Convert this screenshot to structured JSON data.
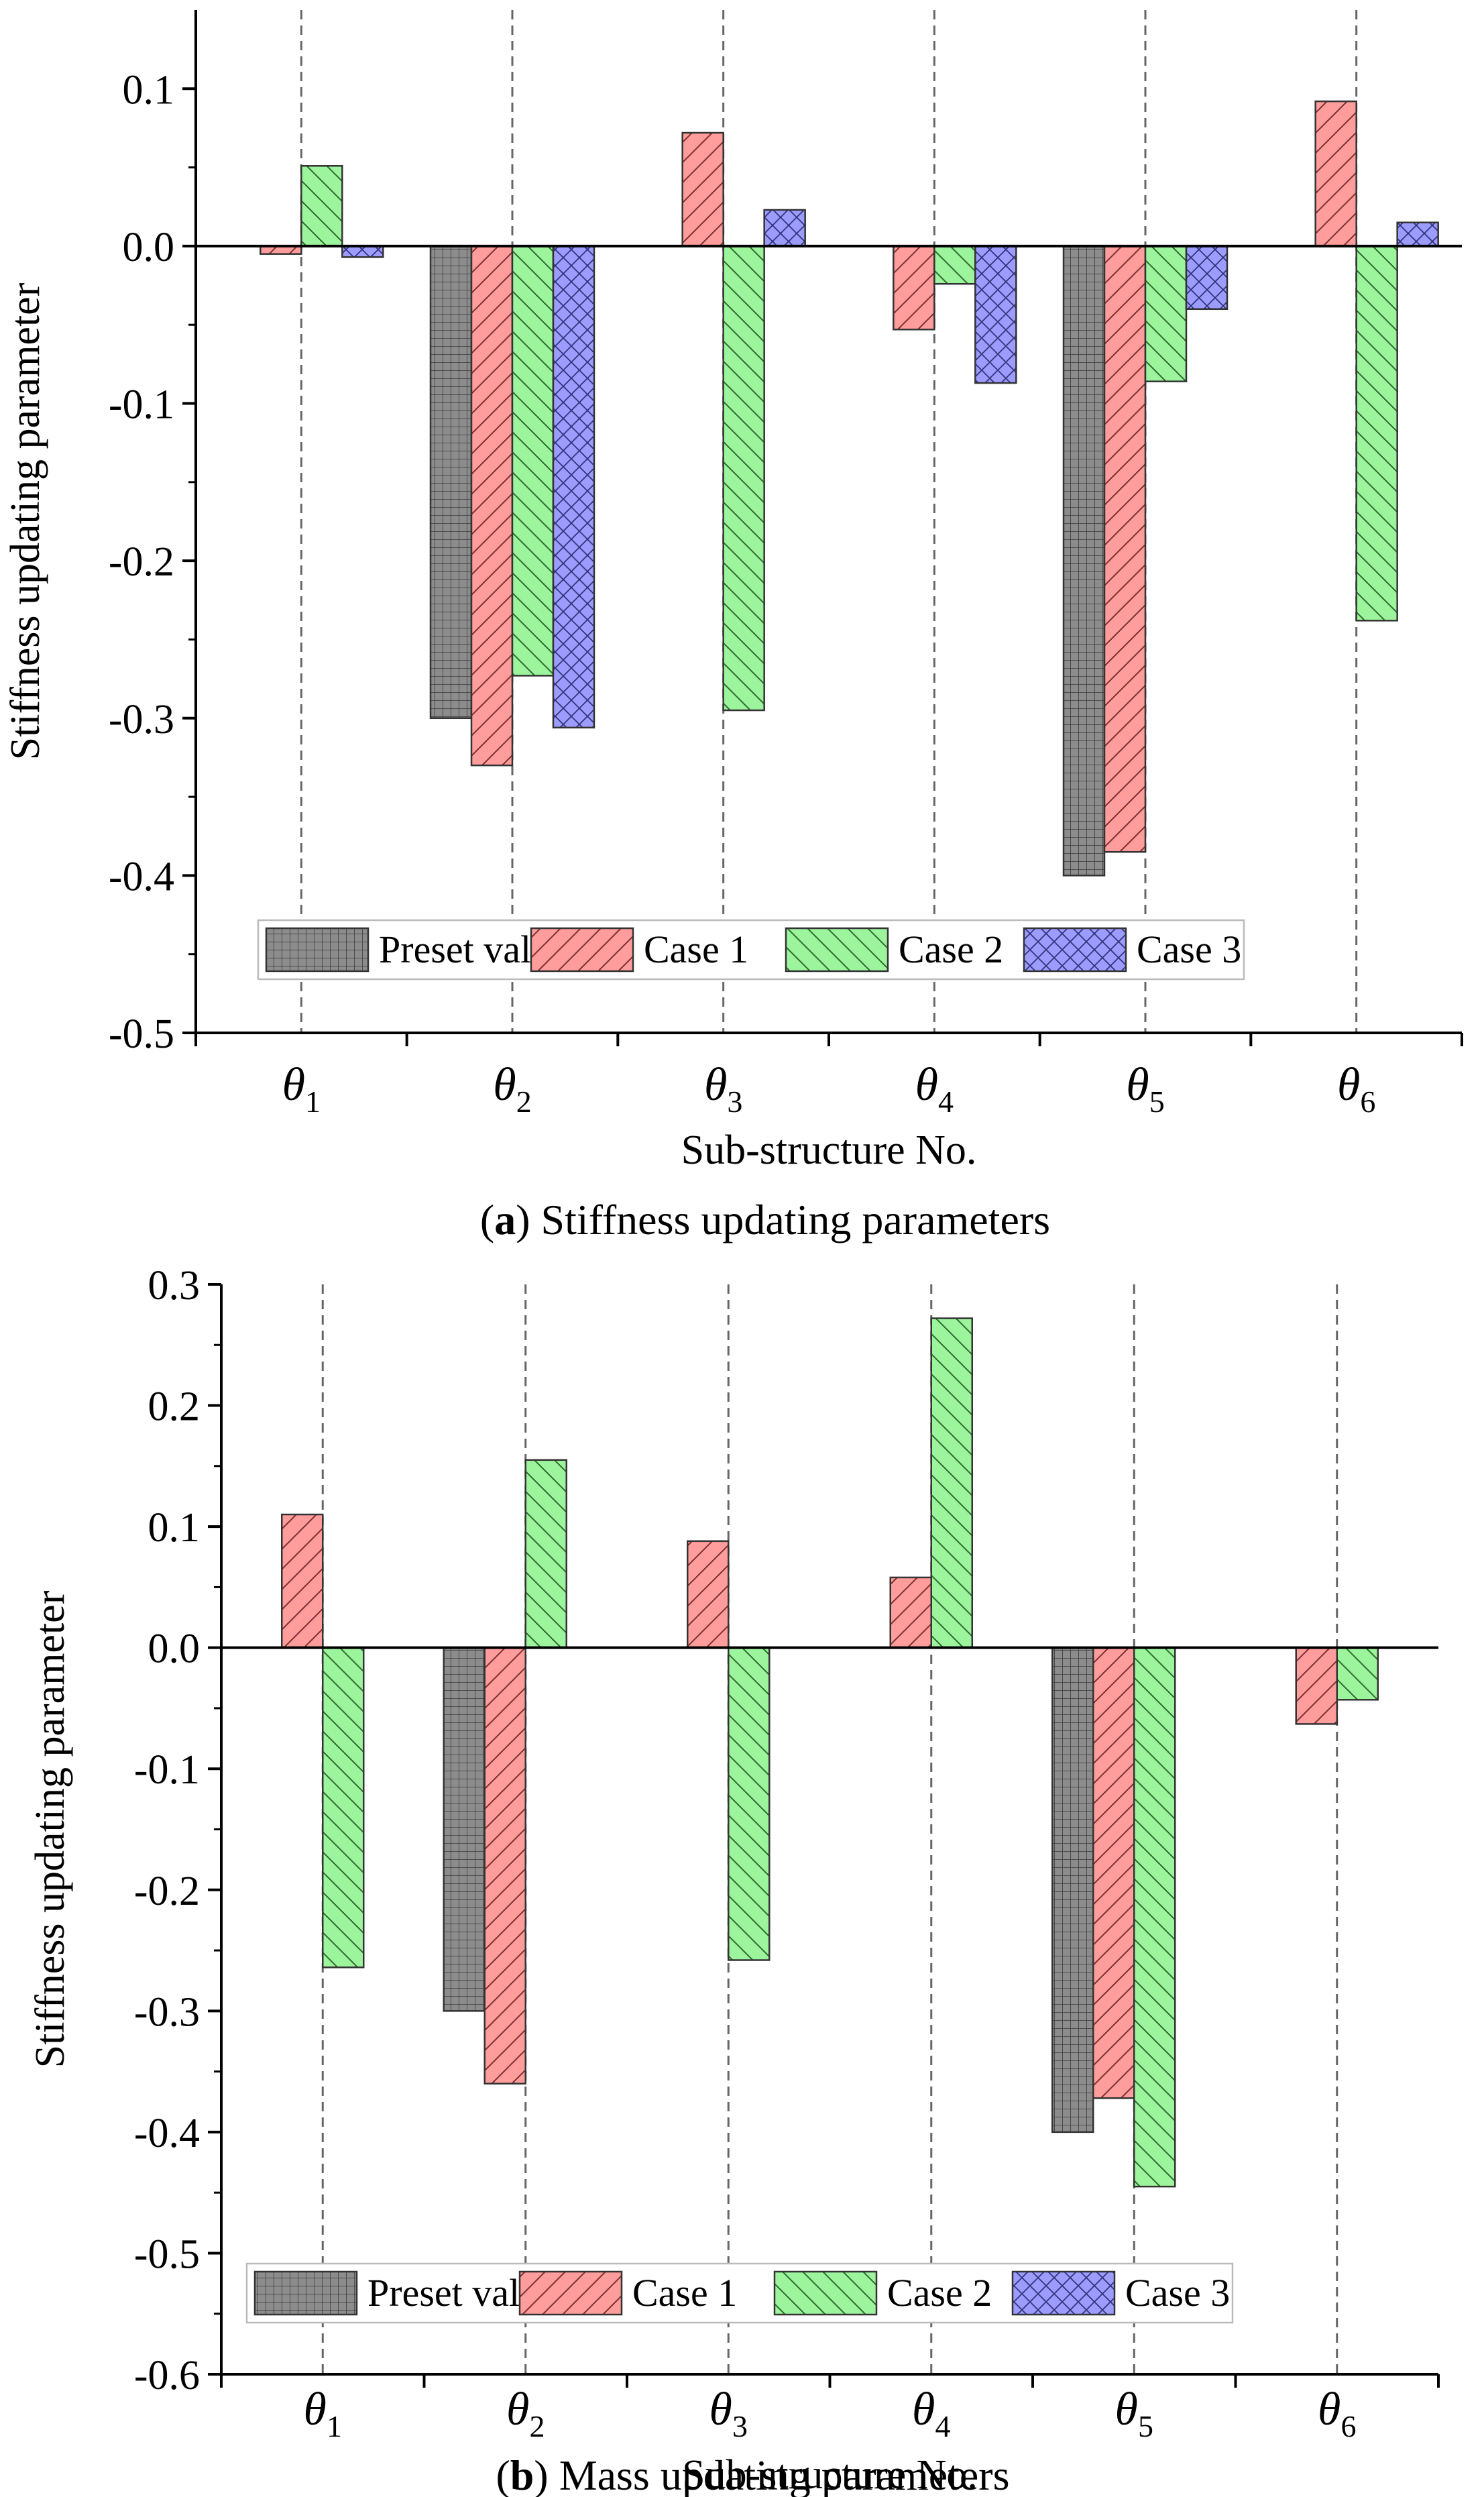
{
  "chart_data": [
    {
      "panel_id": "a",
      "type": "bar",
      "caption_label": "a",
      "caption_text": " Stiffness updating parameters",
      "xlabel": "Sub-structure No.",
      "ylabel": "Stiffness updating parameter",
      "ylim": [
        -0.5,
        0.15
      ],
      "yticks": [
        0.1,
        0.0,
        -0.1,
        -0.2,
        -0.3,
        -0.4,
        -0.5
      ],
      "ytick_labels": [
        "0.1",
        "0.0",
        "-0.1",
        "-0.2",
        "-0.3",
        "-0.4",
        "-0.5"
      ],
      "categories": [
        {
          "symbol": "θ",
          "sub": "1"
        },
        {
          "symbol": "θ",
          "sub": "2"
        },
        {
          "symbol": "θ",
          "sub": "3"
        },
        {
          "symbol": "θ",
          "sub": "4"
        },
        {
          "symbol": "θ",
          "sub": "5"
        },
        {
          "symbol": "θ",
          "sub": "6"
        }
      ],
      "legend_position": "bottom-center",
      "series": [
        {
          "name": "Preset value",
          "values": [
            0,
            -0.3,
            0,
            0,
            -0.4,
            0
          ]
        },
        {
          "name": "Case 1",
          "values": [
            -0.005,
            -0.33,
            0.072,
            -0.053,
            -0.385,
            0.092
          ]
        },
        {
          "name": "Case 2",
          "values": [
            0.051,
            -0.273,
            -0.295,
            -0.024,
            -0.086,
            -0.238
          ]
        },
        {
          "name": "Case 3",
          "values": [
            -0.007,
            -0.306,
            0.023,
            -0.087,
            -0.04,
            0.015
          ]
        }
      ]
    },
    {
      "panel_id": "b",
      "type": "bar",
      "caption_label": "b",
      "caption_text": " Mass updating parameters",
      "xlabel": "Sub-structure No.",
      "ylabel": "Stiffness updating parameter",
      "ylim": [
        -0.6,
        0.3
      ],
      "yticks": [
        0.3,
        0.2,
        0.1,
        0.0,
        -0.1,
        -0.2,
        -0.3,
        -0.4,
        -0.5,
        -0.6
      ],
      "ytick_labels": [
        "0.3",
        "0.2",
        "0.1",
        "0.0",
        "-0.1",
        "-0.2",
        "-0.3",
        "-0.4",
        "-0.5",
        "-0.6"
      ],
      "categories": [
        {
          "symbol": "θ",
          "sub": "1"
        },
        {
          "symbol": "θ",
          "sub": "2"
        },
        {
          "symbol": "θ",
          "sub": "3"
        },
        {
          "symbol": "θ",
          "sub": "4"
        },
        {
          "symbol": "θ",
          "sub": "5"
        },
        {
          "symbol": "θ",
          "sub": "6"
        }
      ],
      "legend_position": "bottom-center",
      "series": [
        {
          "name": "Preset value",
          "values": [
            0,
            -0.3,
            0,
            0,
            -0.4,
            0
          ]
        },
        {
          "name": "Case 1",
          "values": [
            0.11,
            -0.36,
            0.088,
            0.058,
            -0.372,
            -0.063
          ]
        },
        {
          "name": "Case 2",
          "values": [
            -0.264,
            0.155,
            -0.258,
            0.272,
            -0.445,
            -0.043
          ]
        },
        {
          "name": "Case 3",
          "values": [
            0,
            0,
            0,
            0,
            0,
            0
          ]
        }
      ]
    }
  ],
  "style": {
    "series_colors": [
      "#8c8c8c",
      "#ff9c9c",
      "#9cf59c",
      "#9c9cff"
    ],
    "series_patterns": [
      "grid",
      "diag-right",
      "diag-left",
      "crosshatch"
    ],
    "axis_color": "#000000",
    "guide_color": "#666666"
  }
}
